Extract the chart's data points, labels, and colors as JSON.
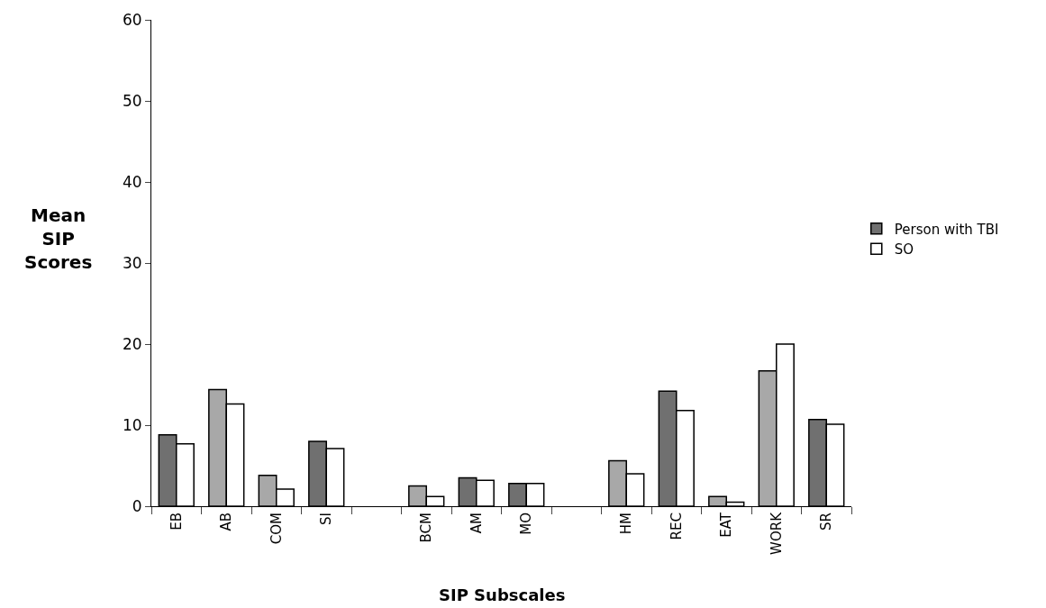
{
  "chart_data": {
    "type": "bar",
    "xlabel": "SIP Subscales",
    "ylabel": "Mean SIP Scores",
    "categories": [
      "EB",
      "AB",
      "COM",
      "SI",
      null,
      "BCM",
      "AM",
      "MO",
      null,
      "HM",
      "REC",
      "EAT",
      "WORK",
      "SR"
    ],
    "series": [
      {
        "name": "Person with TBI",
        "color": "#707070",
        "colors": [
          "#707070",
          "#a8a8a8",
          "#a8a8a8",
          "#707070",
          "#a8a8a8",
          "#a8a8a8",
          "#707070",
          "#707070",
          "#a8a8a8",
          "#a8a8a8",
          "#707070",
          "#a8a8a8",
          "#a8a8a8",
          "#707070"
        ],
        "values": [
          8.8,
          14.4,
          3.8,
          8.0,
          null,
          2.5,
          3.5,
          2.8,
          null,
          5.6,
          14.2,
          1.2,
          16.7,
          10.7
        ]
      },
      {
        "name": "SO",
        "color": "#ffffff",
        "values": [
          7.7,
          12.6,
          2.1,
          7.1,
          null,
          1.2,
          3.2,
          2.8,
          null,
          4.0,
          11.8,
          0.5,
          20.0,
          10.1
        ]
      }
    ],
    "ylim": [
      0,
      60
    ],
    "yticks": [
      0,
      10,
      20,
      30,
      40,
      50,
      60
    ],
    "grid": false,
    "legend": "right"
  }
}
